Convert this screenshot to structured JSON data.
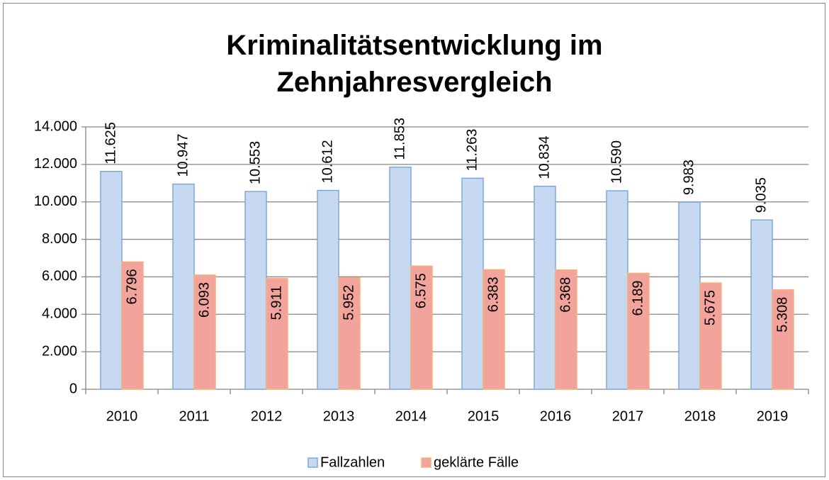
{
  "chart_data": {
    "type": "bar",
    "title": "Kriminalitätsentwicklung im Zehnjahresvergleich",
    "categories": [
      "2010",
      "2011",
      "2012",
      "2013",
      "2014",
      "2015",
      "2016",
      "2017",
      "2018",
      "2019"
    ],
    "series": [
      {
        "name": "Fallzahlen",
        "color": "#c6d9f1",
        "stroke": "#7fa7df",
        "values": [
          11625,
          10947,
          10553,
          10612,
          11853,
          11263,
          10834,
          10590,
          9983,
          9035
        ],
        "value_labels": [
          "11.625",
          "10.947",
          "10.553",
          "10.612",
          "11.853",
          "11.263",
          "10.834",
          "10.590",
          "9.983",
          "9.035"
        ]
      },
      {
        "name": "geklärte Fälle",
        "color": "#f2a39c",
        "stroke": "#f5b37c",
        "values": [
          6796,
          6093,
          5911,
          5952,
          6575,
          6383,
          6368,
          6189,
          5675,
          5308
        ],
        "value_labels": [
          "6.796",
          "6.093",
          "5.911",
          "5.952",
          "6.575",
          "6.383",
          "6.368",
          "6.189",
          "5.675",
          "5.308"
        ]
      }
    ],
    "ylim": [
      0,
      14000
    ],
    "yticks": [
      0,
      {
        "value": 2000,
        "label": "2.000"
      },
      {
        "value": 4000,
        "label": "4.000"
      },
      {
        "value": 6000,
        "label": "6.000"
      },
      {
        "value": 8000,
        "label": "8.000"
      },
      {
        "value": 10000,
        "label": "10.000"
      },
      {
        "value": 12000,
        "label": "12.000"
      },
      {
        "value": 14000,
        "label": "14.000"
      }
    ],
    "grid": true,
    "legend": "bottom"
  }
}
